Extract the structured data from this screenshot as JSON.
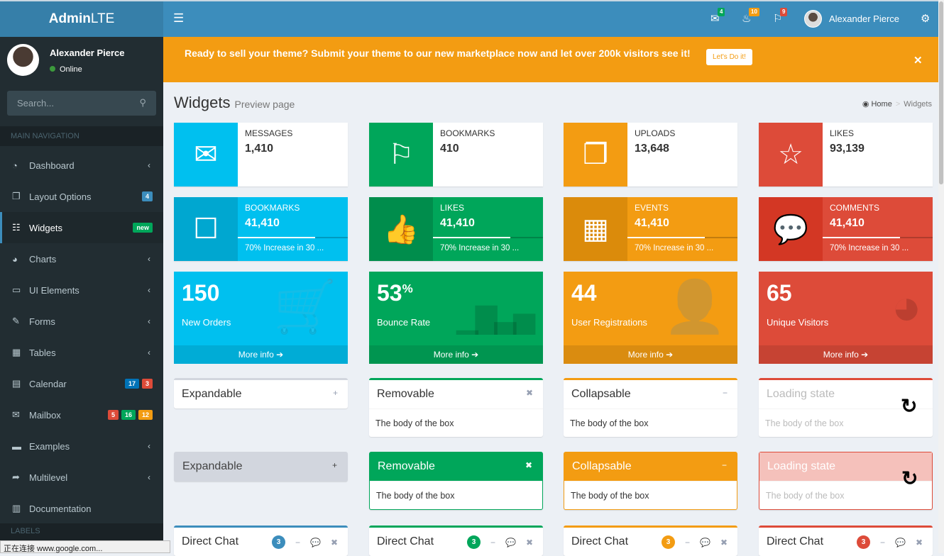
{
  "header": {
    "logo_bold": "Admin",
    "logo_rest": "LTE",
    "user": "Alexander Pierce",
    "badges": {
      "messages": "4",
      "notifications": "10",
      "tasks": "9"
    }
  },
  "sidebar": {
    "user": "Alexander Pierce",
    "status": "Online",
    "search_placeholder": "Search...",
    "main_nav": "MAIN NAVIGATION",
    "labels": "LABELS",
    "items": [
      {
        "label": "Dashboard",
        "icon": "◔",
        "arrow": true,
        "badges": []
      },
      {
        "label": "Layout Options",
        "icon": "❐",
        "badges": [
          {
            "t": "4",
            "c": "#3c8dbc"
          }
        ]
      },
      {
        "label": "Widgets",
        "icon": "☷",
        "active": true,
        "badges": [
          {
            "t": "new",
            "c": "#00a65a"
          }
        ]
      },
      {
        "label": "Charts",
        "icon": "◕",
        "arrow": true,
        "badges": []
      },
      {
        "label": "UI Elements",
        "icon": "▭",
        "arrow": true,
        "badges": []
      },
      {
        "label": "Forms",
        "icon": "✎",
        "arrow": true,
        "badges": []
      },
      {
        "label": "Tables",
        "icon": "▦",
        "arrow": true,
        "badges": []
      },
      {
        "label": "Calendar",
        "icon": "▤",
        "badges": [
          {
            "t": "17",
            "c": "#0073b7"
          },
          {
            "t": "3",
            "c": "#dd4b39"
          }
        ]
      },
      {
        "label": "Mailbox",
        "icon": "✉",
        "badges": [
          {
            "t": "5",
            "c": "#dd4b39"
          },
          {
            "t": "16",
            "c": "#00a65a"
          },
          {
            "t": "12",
            "c": "#f39c12"
          }
        ]
      },
      {
        "label": "Examples",
        "icon": "▬",
        "arrow": true,
        "badges": []
      },
      {
        "label": "Multilevel",
        "icon": "➦",
        "arrow": true,
        "badges": []
      },
      {
        "label": "Documentation",
        "icon": "▥",
        "badges": []
      }
    ]
  },
  "alert": {
    "message": "Ready to sell your theme? Submit your theme to our new marketplace now and let over 200k visitors see it!",
    "button": "Let's Do it!"
  },
  "page": {
    "title": "Widgets",
    "subtitle": "Preview page",
    "breadcrumb": [
      "Home",
      "Widgets"
    ]
  },
  "colors": [
    "#00c0ef",
    "#00a65a",
    "#f39c12",
    "#dd4b39"
  ],
  "dark_colors": [
    "#00a7d0",
    "#008d4c",
    "#db8b0b",
    "#d33724"
  ],
  "info_boxes": [
    {
      "label": "MESSAGES",
      "value": "1,410",
      "icon": "envelope-icon",
      "glyph": "✉"
    },
    {
      "label": "BOOKMARKS",
      "value": "410",
      "icon": "flag-icon",
      "glyph": "⚐"
    },
    {
      "label": "UPLOADS",
      "value": "13,648",
      "icon": "files-icon",
      "glyph": "❐"
    },
    {
      "label": "LIKES",
      "value": "93,139",
      "icon": "star-icon",
      "glyph": "☆"
    }
  ],
  "progress_boxes": [
    {
      "label": "BOOKMARKS",
      "value": "41,410",
      "progress": 70,
      "desc": "70% Increase in 30 ...",
      "icon": "bookmark-icon",
      "glyph": "☐"
    },
    {
      "label": "LIKES",
      "value": "41,410",
      "progress": 70,
      "desc": "70% Increase in 30 ...",
      "icon": "thumbs-up-icon",
      "glyph": "👍"
    },
    {
      "label": "EVENTS",
      "value": "41,410",
      "progress": 70,
      "desc": "70% Increase in 30 ...",
      "icon": "calendar-icon",
      "glyph": "▦"
    },
    {
      "label": "COMMENTS",
      "value": "41,410",
      "progress": 70,
      "desc": "70% Increase in 30 ...",
      "icon": "comments-icon",
      "glyph": "💬"
    }
  ],
  "small_boxes": [
    {
      "value": "150",
      "sup": "",
      "label": "New Orders",
      "footer": "More info ➔",
      "icon": "shopping-cart-icon",
      "glyph": "🛒"
    },
    {
      "value": "53",
      "sup": "%",
      "label": "Bounce Rate",
      "footer": "More info ➔",
      "icon": "bar-chart-icon",
      "glyph": "▁▇▃▅"
    },
    {
      "value": "44",
      "sup": "",
      "label": "User Registrations",
      "footer": "More info ➔",
      "icon": "user-plus-icon",
      "glyph": "👤"
    },
    {
      "value": "65",
      "sup": "",
      "label": "Unique Visitors",
      "footer": "More info ➔",
      "icon": "pie-chart-icon",
      "glyph": "◕"
    }
  ],
  "boxes": [
    {
      "title": "Expandable",
      "tool": "+",
      "tool_icon": "plus-icon",
      "body": ""
    },
    {
      "title": "Removable",
      "tool": "✖",
      "tool_icon": "times-icon",
      "body": "The body of the box"
    },
    {
      "title": "Collapsable",
      "tool": "−",
      "tool_icon": "minus-icon",
      "body": "The body of the box"
    },
    {
      "title": "Loading state",
      "tool": "",
      "body": "The body of the box",
      "loading": true
    }
  ],
  "chat_boxes": [
    {
      "title": "Direct Chat",
      "count": "3"
    },
    {
      "title": "Direct Chat",
      "count": "3"
    },
    {
      "title": "Direct Chat",
      "count": "3"
    },
    {
      "title": "Direct Chat",
      "count": "3"
    }
  ],
  "chat_colors": [
    "#3c8dbc",
    "#00a65a",
    "#f39c12",
    "#dd4b39"
  ],
  "statusbar": "正在连接 www.google.com..."
}
